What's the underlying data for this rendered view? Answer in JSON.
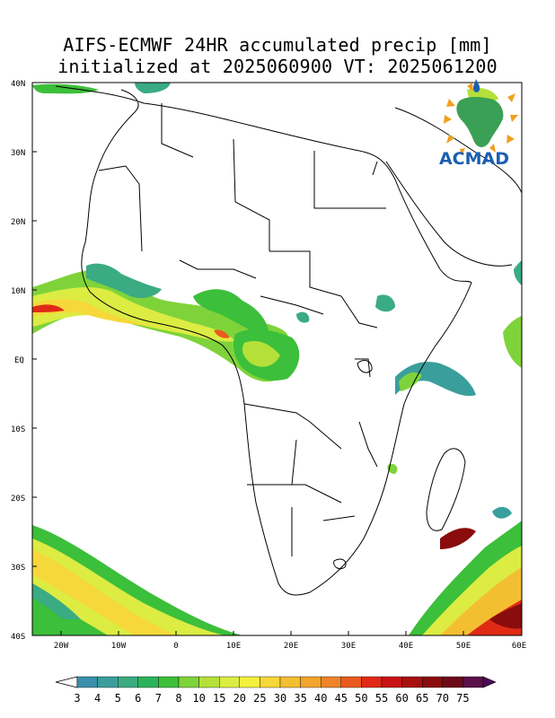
{
  "title": {
    "line1": "AIFS-ECMWF 24HR accumulated precip [mm]",
    "line2": "initialized at 2025060900 VT: 2025061200"
  },
  "logo": {
    "text": "ACMAD"
  },
  "axes": {
    "lat_labels": [
      "40N",
      "30N",
      "20N",
      "10N",
      "EQ",
      "10S",
      "20S",
      "30S",
      "40S"
    ],
    "lon_labels": [
      "20W",
      "10W",
      "0",
      "10E",
      "20E",
      "30E",
      "40E",
      "50E",
      "60E"
    ]
  },
  "colorbar": {
    "labels": [
      "3",
      "4",
      "5",
      "6",
      "7",
      "8",
      "10",
      "15",
      "20",
      "25",
      "30",
      "35",
      "40",
      "45",
      "50",
      "55",
      "60",
      "65",
      "70",
      "75"
    ],
    "colors": [
      "#3a8faa",
      "#3a9f9c",
      "#3aab82",
      "#2cb35a",
      "#3cbf3a",
      "#7fd33a",
      "#b5e03a",
      "#dcec42",
      "#f4f040",
      "#f6d83a",
      "#f4be32",
      "#f2a42c",
      "#ee8426",
      "#ea5a1e",
      "#e02a16",
      "#c81414",
      "#a81010",
      "#8a0c0c",
      "#6c0a18",
      "#5a1048"
    ]
  },
  "icons": {
    "logo_mark": "acmad-africa-sun-logo"
  }
}
